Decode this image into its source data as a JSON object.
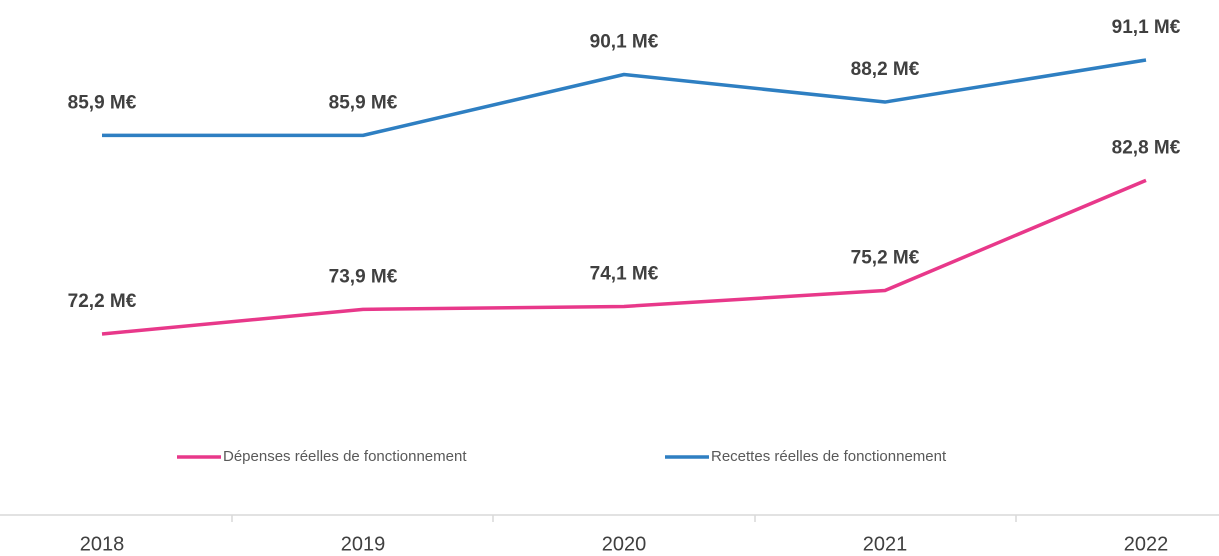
{
  "chart_data": {
    "type": "line",
    "categories": [
      "2018",
      "2019",
      "2020",
      "2021",
      "2022"
    ],
    "series": [
      {
        "name": "Dépenses réelles de fonctionnement",
        "color": "#e8388a",
        "values": [
          72.2,
          73.9,
          74.1,
          75.2,
          82.8
        ],
        "value_labels": [
          "72,2 M€",
          "73,9 M€",
          "74,1 M€",
          "75,2 M€",
          "82,8 M€"
        ]
      },
      {
        "name": "Recettes réelles de fonctionnement",
        "color": "#2e7fc2",
        "values": [
          85.9,
          85.9,
          90.1,
          88.2,
          91.1
        ],
        "value_labels": [
          "85,9 M€",
          "85,9 M€",
          "90,1 M€",
          "88,2 M€",
          "91,1 M€"
        ]
      }
    ],
    "legend": "bottom"
  }
}
